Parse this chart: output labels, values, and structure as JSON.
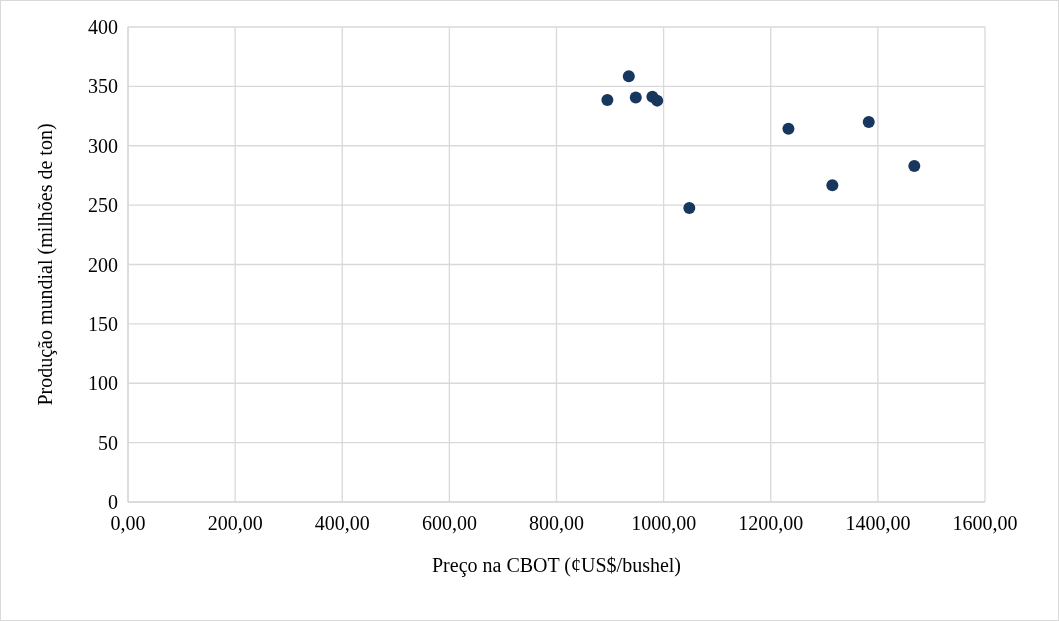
{
  "chart_data": {
    "type": "scatter",
    "xlabel": "Preço na CBOT (¢US$/bushel)",
    "ylabel": "Produção mundial (milhões de ton)",
    "x": [
      895,
      935,
      948,
      979,
      988,
      1048,
      1233,
      1383,
      1315,
      1468
    ],
    "values": [
      338.5,
      358.5,
      340.7,
      341.3,
      338,
      247.5,
      314.4,
      320,
      266.7,
      283
    ],
    "color": "#17375e",
    "marker": "circle",
    "grid": true,
    "xlim": [
      0,
      1600
    ],
    "xticks": [
      {
        "value": 0,
        "label": "0,00"
      },
      {
        "value": 200,
        "label": "200,00"
      },
      {
        "value": 400,
        "label": "400,00"
      },
      {
        "value": 600,
        "label": "600,00"
      },
      {
        "value": 800,
        "label": "800,00"
      },
      {
        "value": 1000,
        "label": "1000,00"
      },
      {
        "value": 1200,
        "label": "1200,00"
      },
      {
        "value": 1400,
        "label": "1400,00"
      },
      {
        "value": 1600,
        "label": "1600,00"
      }
    ],
    "ylim": [
      0,
      400
    ],
    "yticks": [
      0,
      50,
      100,
      150,
      200,
      250,
      300,
      350,
      400
    ]
  }
}
